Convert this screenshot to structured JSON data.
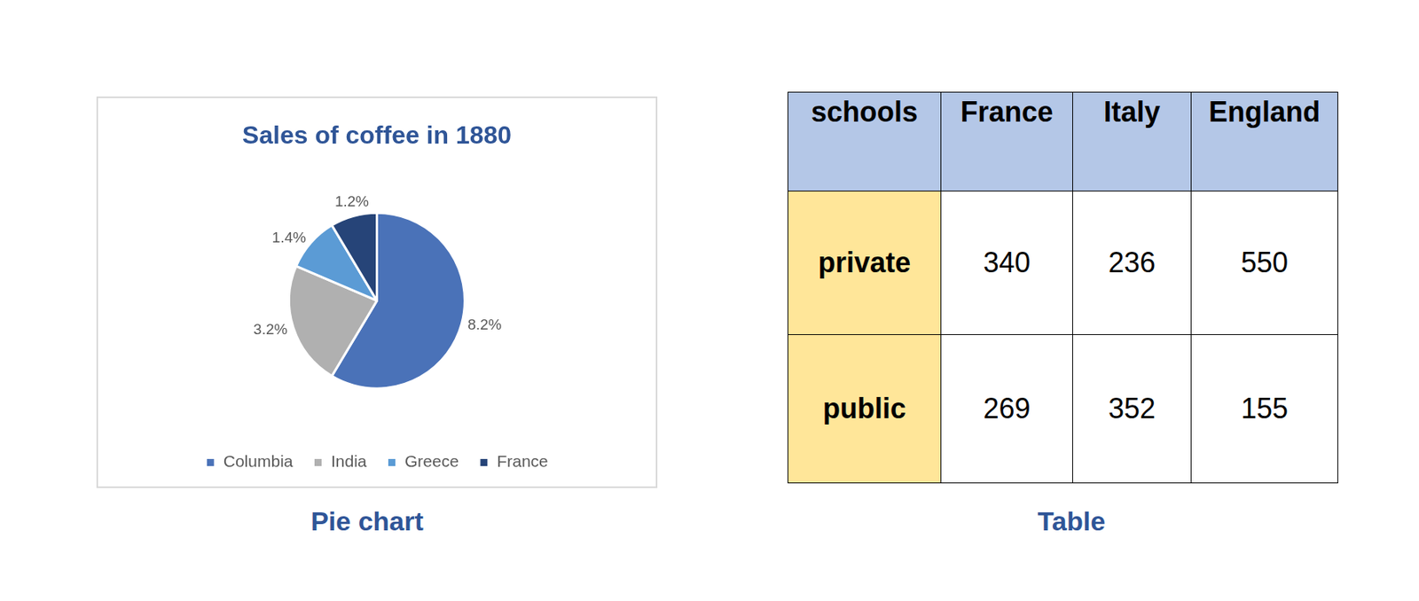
{
  "chart_data": {
    "type": "pie",
    "title": "Sales of coffee in 1880",
    "categories": [
      "Columbia",
      "India",
      "Greece",
      "France"
    ],
    "values": [
      8.2,
      3.2,
      1.4,
      1.2
    ],
    "value_labels": [
      "8.2%",
      "3.2%",
      "1.4%",
      "1.2%"
    ],
    "colors": [
      "#4a72b8",
      "#b0b0b0",
      "#5b9bd5",
      "#264478"
    ],
    "legend": "bottom",
    "data_labels": true
  },
  "chart_caption": "Pie chart",
  "table": {
    "caption": "Table",
    "header": [
      "schools",
      "France",
      "Italy",
      "England"
    ],
    "rows": [
      [
        "private",
        340,
        236,
        550
      ],
      [
        "public",
        269,
        352,
        155
      ]
    ]
  }
}
